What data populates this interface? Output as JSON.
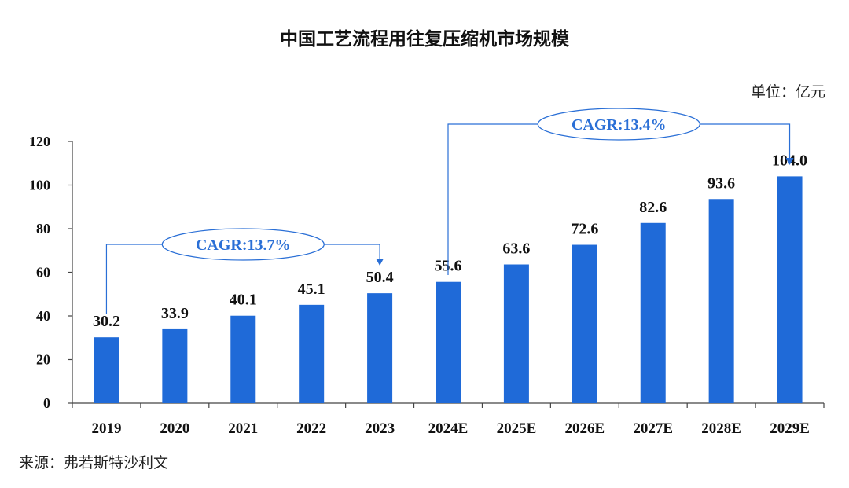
{
  "chart_data": {
    "type": "bar",
    "title": "中国工艺流程用往复压缩机市场规模",
    "unit_label": "单位：亿元",
    "source": "来源：弗若斯特沙利文",
    "categories": [
      "2019",
      "2020",
      "2021",
      "2022",
      "2023",
      "2024E",
      "2025E",
      "2026E",
      "2027E",
      "2028E",
      "2029E"
    ],
    "values": [
      30.2,
      33.9,
      40.1,
      45.1,
      50.4,
      55.6,
      63.6,
      72.6,
      82.6,
      93.6,
      104.0
    ],
    "value_labels": [
      "30.2",
      "33.9",
      "40.1",
      "45.1",
      "50.4",
      "55.6",
      "63.6",
      "72.6",
      "82.6",
      "93.6",
      "104.0"
    ],
    "ylim": [
      0,
      120
    ],
    "yticks": [
      "0",
      "20",
      "40",
      "60",
      "80",
      "100",
      "120"
    ],
    "grid": false,
    "bar_color": "#1f6ad8",
    "annotations": [
      {
        "text": "CAGR:13.7%",
        "from": "2019",
        "to": "2023"
      },
      {
        "text": "CAGR:13.4%",
        "from": "2024E",
        "to": "2029E"
      }
    ]
  }
}
